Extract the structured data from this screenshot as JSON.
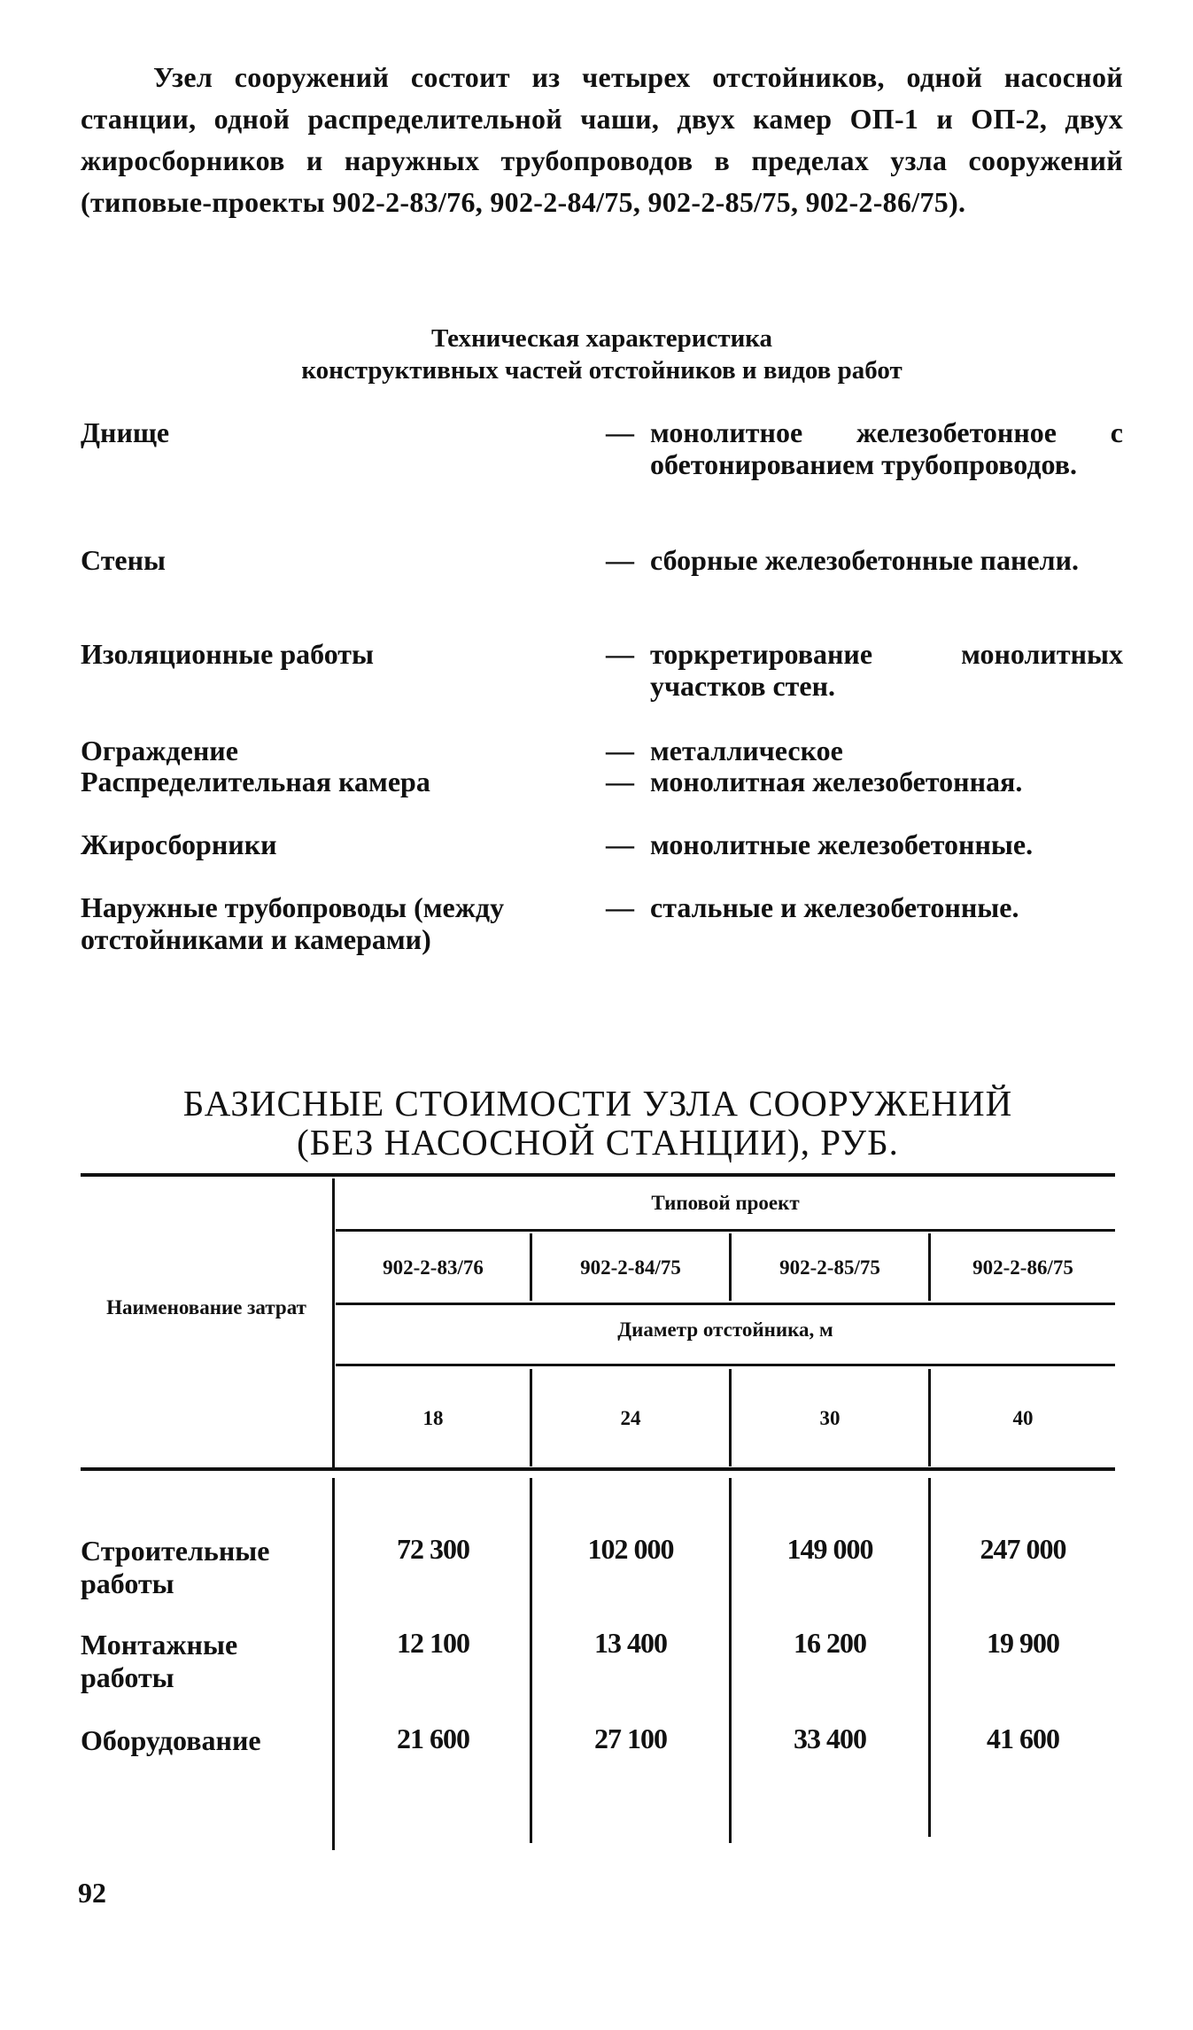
{
  "intro": "Узел сооружений состоит из четырех отстойников, одной насосной станции, одной распределительной чаши, двух камер ОП-1 и ОП-2, двух жиросборников и наружных трубопроводов в пределах узла сооружений (типовые-проекты 902-2-83/76, 902-2-84/75, 902-2-85/75, 902-2-86/75).",
  "spec": {
    "title_line1": "Техническая характеристика",
    "title_line2": "конструктивных частей отстойников и видов работ",
    "items": [
      {
        "part": "Днище",
        "dash": "—",
        "desc": "монолитное железобетонное с обетонированием трубопроводов."
      },
      {
        "part": "Стены",
        "dash": "—",
        "desc": "сборные железобетонные панели."
      },
      {
        "part": "Изоляционные работы",
        "dash": "—",
        "desc": "торкретирование монолитных участков стен."
      },
      {
        "part": "Ограждение",
        "dash": "—",
        "desc": "металлическое"
      },
      {
        "part": "Распределительная камера",
        "dash": "—",
        "desc": "монолитная железобетонная."
      },
      {
        "part": "Жиросборники",
        "dash": "—",
        "desc": "монолитные железобетонные."
      },
      {
        "part": "Наружные трубопроводы (между отстойниками и камерами)",
        "dash": "—",
        "desc": "стальные и железобетонные."
      }
    ]
  },
  "cost_table": {
    "title_line1": "БАЗИСНЫЕ СТОИМОСТИ УЗЛА СООРУЖЕНИЙ",
    "title_line2": "(БЕЗ НАСОСНОЙ СТАНЦИИ), РУБ.",
    "row_header": "Наименование затрат",
    "project_header": "Типовой проект",
    "projects": [
      "902-2-83/76",
      "902-2-84/75",
      "902-2-85/75",
      "902-2-86/75"
    ],
    "diameter_header": "Диаметр отстойника, м",
    "diameters": [
      "18",
      "24",
      "30",
      "40"
    ],
    "rows": [
      {
        "name": "Строительные работы",
        "values": [
          "72 300",
          "102 000",
          "149 000",
          "247 000"
        ]
      },
      {
        "name": "Монтажные работы",
        "values": [
          "12 100",
          "13 400",
          "16 200",
          "19 900"
        ]
      },
      {
        "name": "Оборудование",
        "values": [
          "21 600",
          "27 100",
          "33 400",
          "41 600"
        ]
      }
    ]
  },
  "page_number": "92"
}
